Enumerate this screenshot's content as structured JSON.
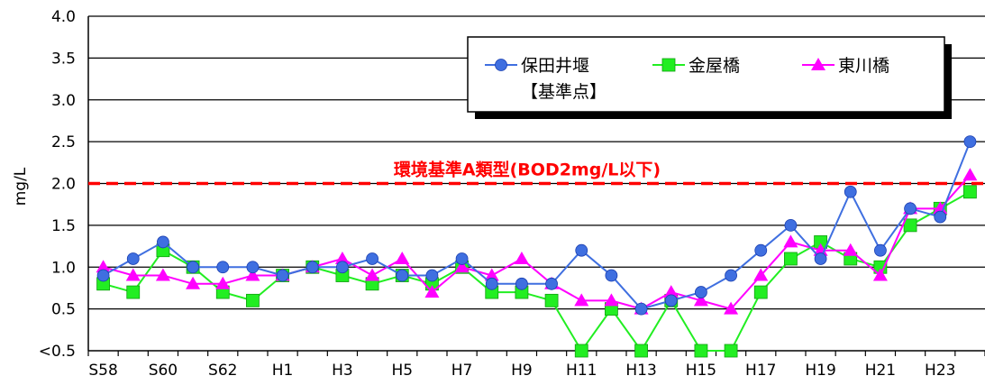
{
  "chart_data": {
    "type": "line",
    "ylabel": "mg/L",
    "xlabel": "",
    "ylim": [
      0.5,
      4.0
    ],
    "y_ticks": [
      "<0.5",
      "0.5",
      "1.0",
      "1.5",
      "2.0",
      "2.5",
      "3.0",
      "3.5",
      "4.0"
    ],
    "y_tick_values": [
      0.5,
      0.5,
      1.0,
      1.5,
      2.0,
      2.5,
      3.0,
      3.5,
      4.0
    ],
    "categories": [
      "S58",
      "S59",
      "S60",
      "S61",
      "S62",
      "S63",
      "H1",
      "H2",
      "H3",
      "H4",
      "H5",
      "H6",
      "H7",
      "H8",
      "H9",
      "H10",
      "H11",
      "H12",
      "H13",
      "H14",
      "H15",
      "H16",
      "H17",
      "H18",
      "H19",
      "H20",
      "H21",
      "H22",
      "H23",
      "H24"
    ],
    "x_tick_labels": [
      "S58",
      "S60",
      "S62",
      "H1",
      "H3",
      "H5",
      "H7",
      "H9",
      "H11",
      "H13",
      "H15",
      "H17",
      "H19",
      "H21",
      "H23"
    ],
    "grid": true,
    "legend_position": "top-right",
    "series": [
      {
        "name": "保田井堰",
        "name_line2": "【基準点】",
        "color": "#3f6fe0",
        "marker": "circle",
        "values": [
          0.9,
          1.1,
          1.3,
          1.0,
          1.0,
          1.0,
          0.9,
          1.0,
          1.0,
          1.1,
          0.9,
          0.9,
          1.1,
          0.8,
          0.8,
          0.8,
          1.2,
          0.9,
          0.5,
          0.6,
          0.7,
          0.9,
          1.2,
          1.5,
          1.1,
          1.9,
          1.2,
          1.7,
          1.6,
          2.5
        ]
      },
      {
        "name": "金屋橋",
        "color": "#22ee22",
        "marker": "square",
        "values": [
          0.8,
          0.7,
          1.2,
          1.0,
          0.7,
          0.6,
          0.9,
          1.0,
          0.9,
          0.8,
          0.9,
          0.8,
          1.0,
          0.7,
          0.7,
          0.6,
          "<0.5",
          0.5,
          "<0.5",
          0.6,
          "<0.5",
          "<0.5",
          0.7,
          1.1,
          1.3,
          1.1,
          1.0,
          1.5,
          1.7,
          1.9
        ]
      },
      {
        "name": "東川橋",
        "color": "#ff00ff",
        "marker": "triangle",
        "values": [
          1.0,
          0.9,
          0.9,
          0.8,
          0.8,
          0.9,
          0.9,
          1.0,
          1.1,
          0.9,
          1.1,
          0.7,
          1.0,
          0.9,
          1.1,
          0.8,
          0.6,
          0.6,
          0.5,
          0.7,
          0.6,
          0.5,
          0.9,
          1.3,
          1.2,
          1.2,
          0.9,
          1.7,
          1.7,
          2.1
        ]
      }
    ],
    "annotations": [
      {
        "text": "環境基準A類型(BOD2mg/L以下)",
        "y": 2.0,
        "color": "#ff0000",
        "style": "dashed"
      }
    ]
  }
}
